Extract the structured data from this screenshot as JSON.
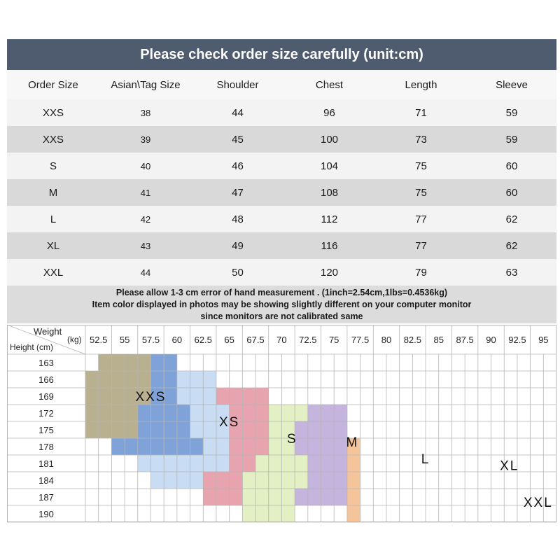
{
  "table": {
    "title": "Please check order size carefully (unit:cm)",
    "headers": [
      "Order Size",
      "Asian\\Tag Size",
      "Shoulder",
      "Chest",
      "Length",
      "Sleeve"
    ],
    "rows": [
      [
        "XXS",
        "38",
        "44",
        "96",
        "71",
        "59"
      ],
      [
        "XXS",
        "39",
        "45",
        "100",
        "73",
        "59"
      ],
      [
        "S",
        "40",
        "46",
        "104",
        "75",
        "60"
      ],
      [
        "M",
        "41",
        "47",
        "108",
        "75",
        "60"
      ],
      [
        "L",
        "42",
        "48",
        "112",
        "77",
        "62"
      ],
      [
        "XL",
        "43",
        "49",
        "116",
        "77",
        "62"
      ],
      [
        "XXL",
        "44",
        "50",
        "120",
        "79",
        "63"
      ]
    ],
    "notes": [
      "Please allow 1-3 cm error of hand measurement . (1inch=2.54cm,1lbs=0.4536kg)",
      "Item color displayed in photos may be showing slightly different on your computer monitor",
      "since monitors are not calibrated same"
    ]
  },
  "chart": {
    "weight_label": "Weight",
    "weight_unit": "(kg)",
    "height_label": "Height (cm)",
    "weights": [
      "52.5",
      "55",
      "57.5",
      "60",
      "62.5",
      "65",
      "67.5",
      "70",
      "72.5",
      "75",
      "77.5",
      "80",
      "82.5",
      "85",
      "87.5",
      "90",
      "92.5",
      "95"
    ],
    "heights": [
      "163",
      "166",
      "169",
      "172",
      "175",
      "178",
      "181",
      "184",
      "187",
      "190"
    ],
    "regions": [
      {
        "label": "XXS",
        "color": "#b8b08f",
        "cells": [
          [
            0,
            1,
            4
          ],
          [
            1,
            0,
            4
          ],
          [
            2,
            0,
            4
          ],
          [
            3,
            0,
            3
          ],
          [
            4,
            0,
            3
          ]
        ]
      },
      {
        "label": "XS",
        "color": "#7fa3d9",
        "cells": [
          [
            0,
            5,
            6
          ],
          [
            1,
            5,
            6
          ],
          [
            2,
            5,
            6
          ],
          [
            3,
            4,
            7
          ],
          [
            4,
            4,
            7
          ],
          [
            5,
            2,
            8
          ]
        ]
      },
      {
        "label": "S",
        "color": "#c8dcf3",
        "cells": [
          [
            1,
            7,
            9
          ],
          [
            2,
            7,
            9
          ],
          [
            3,
            8,
            10
          ],
          [
            4,
            8,
            10
          ],
          [
            5,
            9,
            10
          ],
          [
            6,
            4,
            10
          ],
          [
            7,
            5,
            9
          ]
        ]
      },
      {
        "label": "M",
        "color": "#e8a4ae",
        "cells": [
          [
            2,
            10,
            13
          ],
          [
            3,
            11,
            13
          ],
          [
            4,
            11,
            13
          ],
          [
            5,
            11,
            13
          ],
          [
            6,
            11,
            12
          ],
          [
            7,
            9,
            12
          ],
          [
            8,
            9,
            11
          ]
        ]
      },
      {
        "label": "L",
        "color": "#e3f0c4",
        "cells": [
          [
            3,
            14,
            16
          ],
          [
            4,
            14,
            16
          ],
          [
            5,
            14,
            16
          ],
          [
            6,
            13,
            16
          ],
          [
            7,
            12,
            16
          ],
          [
            8,
            12,
            15
          ],
          [
            9,
            12,
            15
          ]
        ]
      },
      {
        "label": "XL",
        "color": "#c5b4dd",
        "cells": [
          [
            3,
            17,
            19
          ],
          [
            4,
            16,
            19
          ],
          [
            5,
            16,
            19
          ],
          [
            6,
            17,
            19
          ],
          [
            7,
            17,
            19
          ],
          [
            8,
            16,
            19
          ]
        ]
      },
      {
        "label": "XXL",
        "color": "#f6c49a",
        "cells": [
          [
            5,
            20,
            20
          ],
          [
            6,
            20,
            20
          ],
          [
            7,
            20,
            20
          ],
          [
            8,
            20,
            20
          ],
          [
            9,
            20,
            20
          ]
        ]
      }
    ],
    "region_labels": [
      {
        "text": "XXS",
        "col": 2.5,
        "row": 2.5
      },
      {
        "text": "XS",
        "col": 5.5,
        "row": 4
      },
      {
        "text": "S",
        "col": 7.9,
        "row": 5
      },
      {
        "text": "M",
        "col": 10.2,
        "row": 5.2
      },
      {
        "text": "L",
        "col": 13.0,
        "row": 6.2
      },
      {
        "text": "XL",
        "col": 16.2,
        "row": 6.6
      },
      {
        "text": "XXL",
        "col": 17.3,
        "row": 8.8
      }
    ]
  }
}
